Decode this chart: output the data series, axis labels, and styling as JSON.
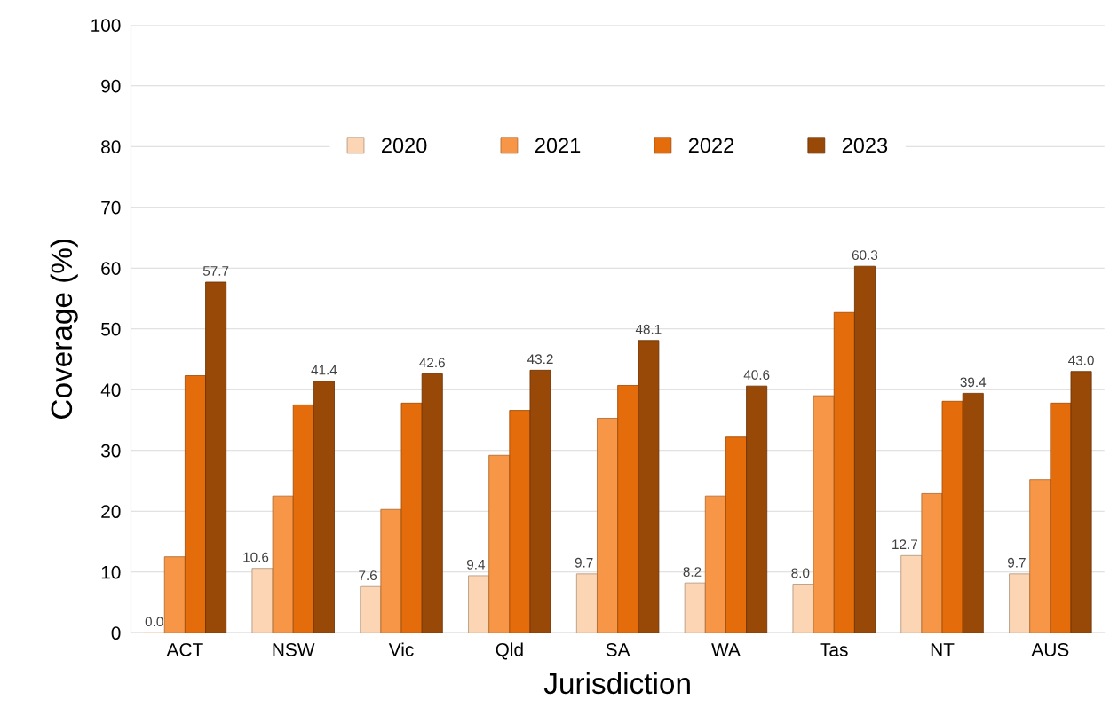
{
  "chart_data": {
    "type": "bar",
    "xlabel": "Jurisdiction",
    "ylabel": "Coverage (%)",
    "categories": [
      "ACT",
      "NSW",
      "Vic",
      "Qld",
      "SA",
      "WA",
      "Tas",
      "NT",
      "AUS"
    ],
    "series": [
      {
        "name": "2020",
        "color": "#fcd5b4",
        "values": [
          0.0,
          10.6,
          7.6,
          9.4,
          9.7,
          8.2,
          8.0,
          12.7,
          9.7
        ],
        "value_labels": [
          "0.0",
          "10.6",
          "7.6",
          "9.4",
          "9.7",
          "8.2",
          "8.0",
          "12.7",
          "9.7"
        ]
      },
      {
        "name": "2021",
        "color": "#f79646",
        "values": [
          12.5,
          22.5,
          20.3,
          29.2,
          35.3,
          22.5,
          39.0,
          22.9,
          25.2
        ]
      },
      {
        "name": "2022",
        "color": "#e46c0a",
        "values": [
          42.3,
          37.5,
          37.8,
          36.6,
          40.7,
          32.2,
          52.7,
          38.1,
          37.8
        ]
      },
      {
        "name": "2023",
        "color": "#984807",
        "values": [
          57.7,
          41.4,
          42.6,
          43.2,
          48.1,
          40.6,
          60.3,
          39.4,
          43.0
        ],
        "value_labels": [
          "57.7",
          "41.4",
          "42.6",
          "43.2",
          "48.1",
          "40.6",
          "60.3",
          "39.4",
          "43.0"
        ]
      }
    ],
    "ylim": [
      0,
      100
    ],
    "yticks": [
      0,
      10,
      20,
      30,
      40,
      50,
      60,
      70,
      80,
      90,
      100
    ],
    "grid": "y",
    "legend": "top"
  }
}
